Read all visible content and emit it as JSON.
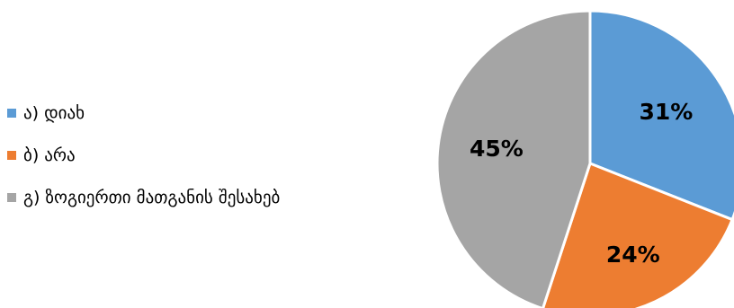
{
  "chart_data": {
    "type": "pie",
    "categories": [
      "ა) დიახ",
      "ბ)  არა",
      "გ)  ზოგიერთი მათგანის შესახებ"
    ],
    "values": [
      31,
      24,
      45
    ],
    "value_labels": [
      "31%",
      "24%",
      "45%"
    ],
    "colors": [
      "#5B9BD5",
      "#ED7D31",
      "#A5A5A5"
    ],
    "start_angle_deg": 0,
    "direction": "clockwise",
    "legend_position": "left",
    "title": ""
  }
}
